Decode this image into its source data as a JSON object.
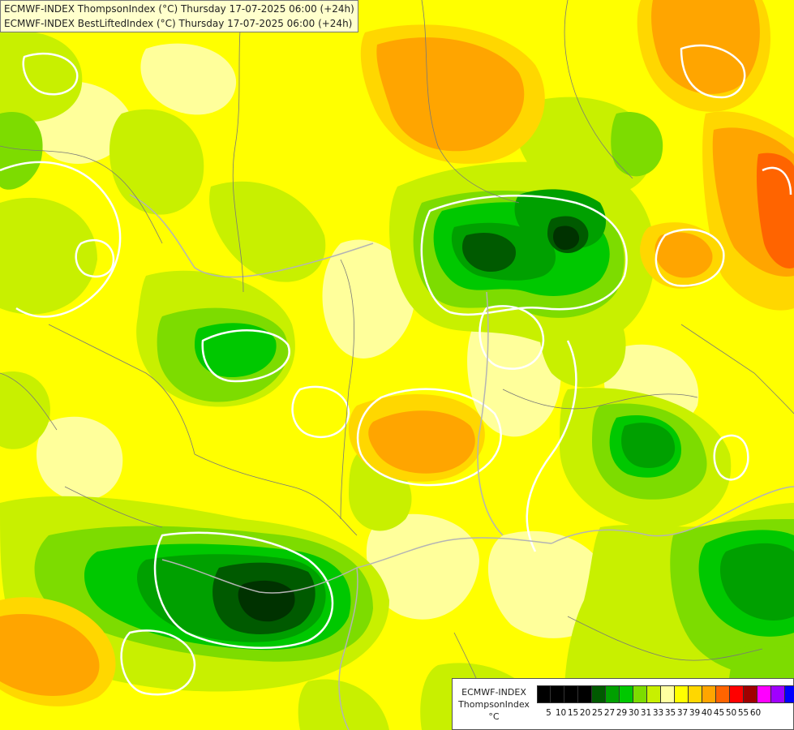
{
  "title": {
    "line1": "ECMWF-INDEX ThompsonIndex (°C) Thursday 17-07-2025 06:00 (+24h)",
    "line2": "ECMWF-INDEX BestLiftedIndex (°C) Thursday 17-07-2025 06:00 (+24h)"
  },
  "legend": {
    "model": "ECMWF-INDEX",
    "parameter": "ThompsonIndex",
    "unit": "°C",
    "ticks": [
      "5",
      "10",
      "15",
      "20",
      "25",
      "27",
      "29",
      "30",
      "31",
      "33",
      "35",
      "37",
      "39",
      "40",
      "45",
      "50",
      "55",
      "60"
    ],
    "colors": [
      "#000000",
      "#000000",
      "#000000",
      "#000000",
      "#005a00",
      "#00a000",
      "#00c800",
      "#7ddc00",
      "#c8f000",
      "#ffffa0",
      "#ffff00",
      "#ffd700",
      "#ffa500",
      "#ff6400",
      "#ff0000",
      "#a00000",
      "#ff00ff",
      "#a000ff",
      "#0000ff"
    ]
  },
  "map_colors": {
    "yellow": "#ffff00",
    "light_yellow": "#ffff9b",
    "gold": "#ffd700",
    "orange": "#ffa500",
    "dark_orange": "#ff6400",
    "yellow_green": "#c8f000",
    "light_green": "#7ddc00",
    "green": "#00c800",
    "mid_green": "#00a000",
    "dark_green": "#005a00",
    "darkest_green": "#003200"
  }
}
